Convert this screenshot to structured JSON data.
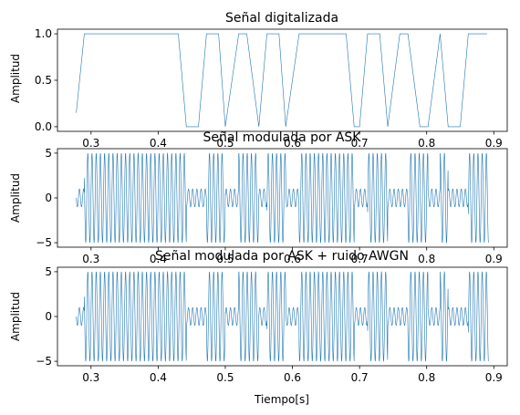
{
  "colors": {
    "series": "#1f77b4",
    "axes": "#000000",
    "background": "#ffffff"
  },
  "chart_data": [
    {
      "type": "line",
      "title": "Señal digitalizada",
      "xlabel": "",
      "ylabel": "Amplitud",
      "xlim": [
        0.25,
        0.92
      ],
      "ylim": [
        -0.05,
        1.05
      ],
      "xticks": [
        0.3,
        0.4,
        0.5,
        0.6,
        0.7,
        0.8,
        0.9
      ],
      "xtick_labels": [
        "0.3",
        "0.4",
        "0.5",
        "0.6",
        "0.7",
        "0.8",
        "0.9"
      ],
      "yticks": [
        0.0,
        0.5,
        1.0
      ],
      "ytick_labels": [
        "0.0",
        "0.5",
        "1.0"
      ],
      "grid": false,
      "series": [
        {
          "x": [
            0.278,
            0.29,
            0.43,
            0.442,
            0.46,
            0.472,
            0.49,
            0.5,
            0.52,
            0.532,
            0.55,
            0.562,
            0.58,
            0.59,
            0.61,
            0.622,
            0.68,
            0.692,
            0.7,
            0.712,
            0.73,
            0.742,
            0.76,
            0.772,
            0.79,
            0.802,
            0.82,
            0.832,
            0.85,
            0.862,
            0.89
          ],
          "y": [
            0.15,
            1,
            1,
            0,
            0,
            1,
            1,
            0,
            1,
            1,
            0,
            1,
            1,
            0,
            1,
            1,
            1,
            0,
            0,
            1,
            1,
            0,
            1,
            1,
            0,
            0,
            1,
            0,
            0,
            1,
            1
          ]
        }
      ]
    },
    {
      "type": "line",
      "title": "Señal modulada por ASK",
      "xlabel": "",
      "ylabel": "Amplitud",
      "xlim": [
        0.25,
        0.92
      ],
      "ylim": [
        -5.5,
        5.5
      ],
      "xticks": [
        0.3,
        0.4,
        0.5,
        0.6,
        0.7,
        0.8,
        0.9
      ],
      "xtick_labels": [
        "0.3",
        "0.4",
        "0.5",
        "0.6",
        "0.7",
        "0.8",
        "0.9"
      ],
      "yticks": [
        -5,
        0,
        5
      ],
      "ytick_labels": [
        "−5",
        "0",
        "5"
      ],
      "grid": false,
      "series": [
        {
          "x_range": [
            0.278,
            0.892
          ],
          "carrier_hz": 160,
          "amplitude_high": 5,
          "amplitude_low": 1,
          "bit_boundaries": [
            0.278,
            0.29,
            0.442,
            0.472,
            0.5,
            0.52,
            0.55,
            0.562,
            0.59,
            0.61,
            0.692,
            0.712,
            0.742,
            0.772,
            0.802,
            0.82,
            0.832,
            0.862,
            0.892
          ],
          "bits": [
            0,
            1,
            0,
            1,
            0,
            1,
            0,
            1,
            0,
            1,
            0,
            1,
            0,
            1,
            0,
            1,
            0,
            1
          ]
        }
      ]
    },
    {
      "type": "line",
      "title": "Señal modulada por ASK + ruido AWGN",
      "xlabel": "Tiempo[s]",
      "ylabel": "Amplitud",
      "xlim": [
        0.25,
        0.92
      ],
      "ylim": [
        -5.5,
        5.5
      ],
      "xticks": [
        0.3,
        0.4,
        0.5,
        0.6,
        0.7,
        0.8,
        0.9
      ],
      "xtick_labels": [
        "0.3",
        "0.4",
        "0.5",
        "0.6",
        "0.7",
        "0.8",
        "0.9"
      ],
      "yticks": [
        -5,
        0,
        5
      ],
      "ytick_labels": [
        "−5",
        "0",
        "5"
      ],
      "grid": false,
      "series": [
        {
          "x_range": [
            0.278,
            0.892
          ],
          "carrier_hz": 160,
          "amplitude_high": 5,
          "amplitude_low": 1,
          "bit_boundaries": [
            0.278,
            0.29,
            0.442,
            0.472,
            0.5,
            0.52,
            0.55,
            0.562,
            0.59,
            0.61,
            0.692,
            0.712,
            0.742,
            0.772,
            0.802,
            0.82,
            0.832,
            0.862,
            0.892
          ],
          "bits": [
            0,
            1,
            0,
            1,
            0,
            1,
            0,
            1,
            0,
            1,
            0,
            1,
            0,
            1,
            0,
            1,
            0,
            1
          ]
        }
      ]
    }
  ]
}
